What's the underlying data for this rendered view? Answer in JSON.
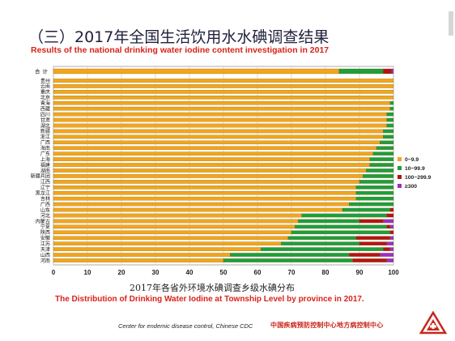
{
  "slide": {
    "title_cn": "（三）2017年全国生活饮用水水碘调查结果",
    "title_en": "Results of the national drinking water iodine content investigation in 2017",
    "caption_cn": "2017年各省外环境水碘调查乡级水碘分布",
    "caption_en": "The Distribution of Drinking Water Iodine at Township Level by province in 2017.",
    "footer_en": "Center for endemic disease control,  Chinese CDC",
    "footer_cn": "中国疾病预防控制中心地方病控制中心",
    "logo_icon": "cdc-logo-icon"
  },
  "chart_data": {
    "type": "bar",
    "orientation": "horizontal",
    "stacked": true,
    "title": "",
    "xlabel": "",
    "ylabel": "",
    "xlim": [
      0,
      100
    ],
    "xticks": [
      0,
      10,
      20,
      30,
      40,
      50,
      60,
      70,
      80,
      90,
      100
    ],
    "grid": true,
    "legend_position": "right",
    "categories": [
      "合计",
      "贵州",
      "云南",
      "重庆",
      "北京",
      "青海",
      "西藏",
      "四川",
      "甘肃",
      "湖北",
      "新疆",
      "浙江",
      "广西",
      "海南",
      "广东",
      "上海",
      "福建",
      "湖南",
      "新疆兵团",
      "江西",
      "辽宁",
      "黑龙江",
      "吉林",
      "广西",
      "山东",
      "河北",
      "内蒙古",
      "宁夏",
      "陕西",
      "安徽",
      "江苏",
      "天津",
      "山西",
      "河南"
    ],
    "colors": [
      "#f2a51c",
      "#1f9e3c",
      "#b51414",
      "#9a2fc4"
    ],
    "series": [
      {
        "name": "0~9.9",
        "values": [
          84,
          100,
          100,
          100,
          100,
          99,
          99,
          98,
          98,
          98,
          97,
          97,
          96,
          95,
          94,
          93,
          93,
          92,
          91,
          90,
          89,
          89,
          89,
          87,
          85,
          73,
          72,
          71,
          70,
          69,
          67,
          61,
          52,
          50
        ]
      },
      {
        "name": "10~99.9",
        "values": [
          13,
          0,
          0,
          0,
          0,
          1,
          1,
          2,
          2,
          2,
          3,
          3,
          4,
          5,
          6,
          7,
          7,
          8,
          9,
          10,
          11,
          11,
          11,
          13,
          14,
          25,
          18,
          27,
          29,
          20,
          23,
          36,
          35,
          38
        ]
      },
      {
        "name": "100~299.9",
        "values": [
          2.5,
          0,
          0,
          0,
          0,
          0,
          0,
          0,
          0,
          0,
          0,
          0,
          0,
          0,
          0,
          0,
          0,
          0,
          0,
          0,
          0,
          0,
          0,
          0,
          1,
          2,
          7,
          1,
          1,
          10,
          8,
          2,
          9,
          10
        ]
      },
      {
        "name": "≥300",
        "values": [
          0.5,
          0,
          0,
          0,
          0,
          0,
          0,
          0,
          0,
          0,
          0,
          0,
          0,
          0,
          0,
          0,
          0,
          0,
          0,
          0,
          0,
          0,
          0,
          0,
          0,
          0,
          3,
          1,
          0,
          1,
          2,
          1,
          4,
          2
        ]
      }
    ]
  }
}
